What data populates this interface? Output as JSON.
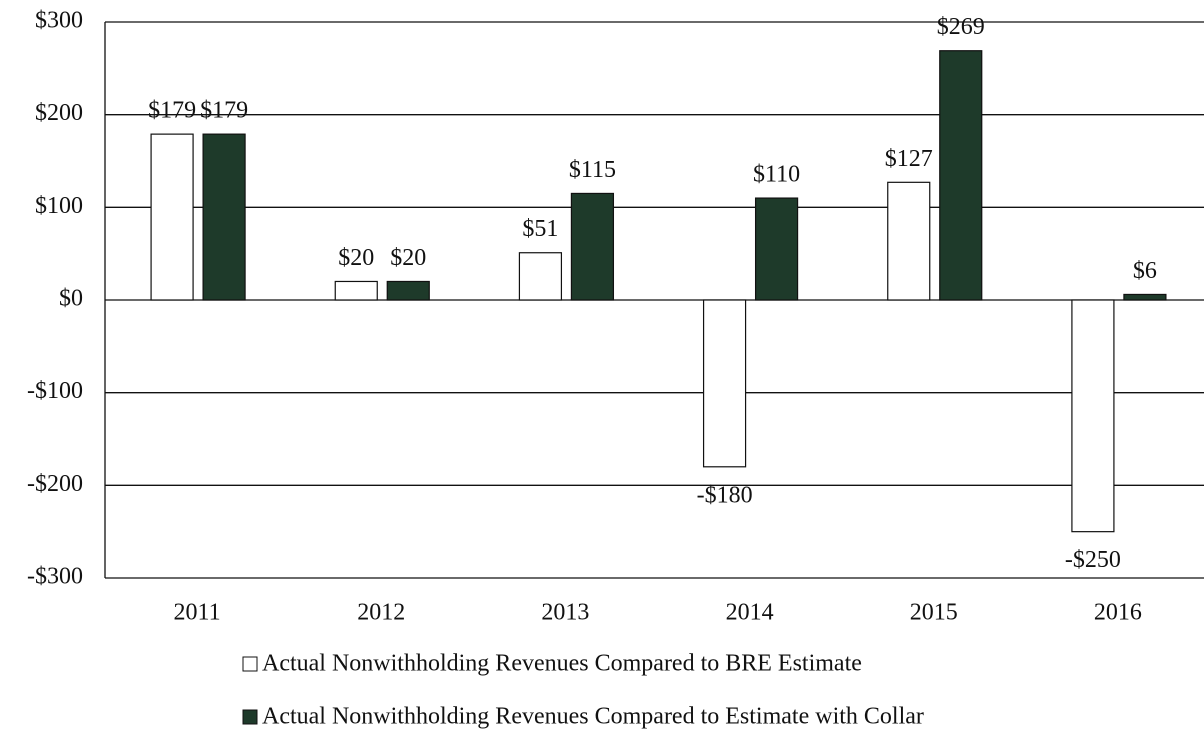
{
  "chart_data": {
    "type": "bar",
    "categories": [
      "2011",
      "2012",
      "2013",
      "2014",
      "2015",
      "2016"
    ],
    "series": [
      {
        "name": "Actual Nonwithholding Revenues Compared to BRE Estimate",
        "color": "#ffffff",
        "values": [
          179,
          20,
          51,
          -180,
          127,
          -250
        ],
        "value_labels": [
          "$179",
          "$20",
          "$51",
          "-$180",
          "$127",
          "-$250"
        ]
      },
      {
        "name": "Actual Nonwithholding Revenues Compared to Estimate with Collar",
        "color": "#1e3a2a",
        "values": [
          179,
          20,
          115,
          110,
          269,
          6
        ],
        "value_labels": [
          "$179",
          "$20",
          "$115",
          "$110",
          "$269",
          "$6"
        ]
      }
    ],
    "ylim": [
      -300,
      300
    ],
    "yticks": [
      {
        "value": -300,
        "label": "-$300"
      },
      {
        "value": -200,
        "label": "-$200"
      },
      {
        "value": -100,
        "label": "-$100"
      },
      {
        "value": 0,
        "label": "$0"
      },
      {
        "value": 100,
        "label": "$100"
      },
      {
        "value": 200,
        "label": "$200"
      },
      {
        "value": 300,
        "label": "$300"
      }
    ],
    "grid": true
  }
}
